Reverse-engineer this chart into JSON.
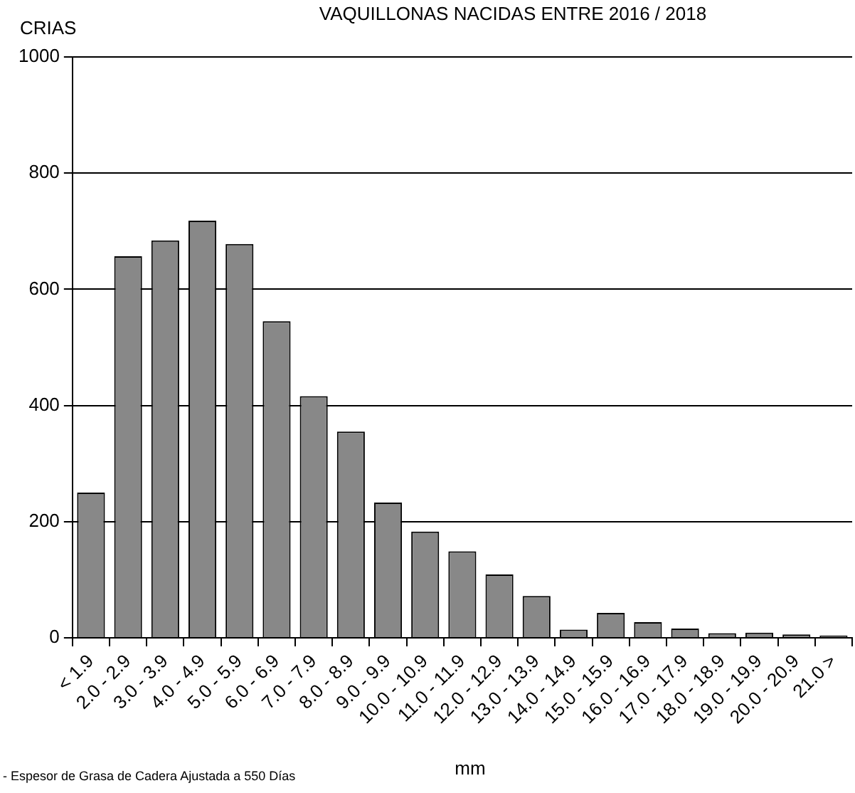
{
  "chart_data": {
    "type": "bar",
    "title": "VAQUILLONAS NACIDAS ENTRE 2016 / 2018",
    "ylabel": "CRIAS",
    "xlabel": "mm",
    "annotations": [
      "- Espesor de Grasa de Cadera Ajustada a 550 Días"
    ],
    "categories": [
      "< 1.9",
      "2.0 - 2.9",
      "3.0 - 3.9",
      "4.0 - 4.9",
      "5.0 - 5.9",
      "6.0 - 6.9",
      "7.0 - 7.9",
      "8.0 - 8.9",
      "9.0 - 9.9",
      "10.0 - 10.9",
      "11.0 - 11.9",
      "12.0 - 12.9",
      "13.0 - 13.9",
      "14.0 - 14.9",
      "15.0 - 15.9",
      "16.0 - 16.9",
      "17.0 - 17.9",
      "18.0 - 18.9",
      "19.0 - 19.9",
      "20.0 - 20.9",
      "21.0 >"
    ],
    "values": [
      250,
      657,
      684,
      718,
      678,
      545,
      416,
      355,
      233,
      183,
      149,
      109,
      72,
      14,
      43,
      27,
      16,
      8,
      9,
      6,
      4
    ],
    "color": "#888888",
    "ylim": [
      0,
      1000
    ],
    "yticks": [
      0,
      200,
      400,
      600,
      800,
      1000
    ],
    "grid": "y",
    "legend": false
  }
}
